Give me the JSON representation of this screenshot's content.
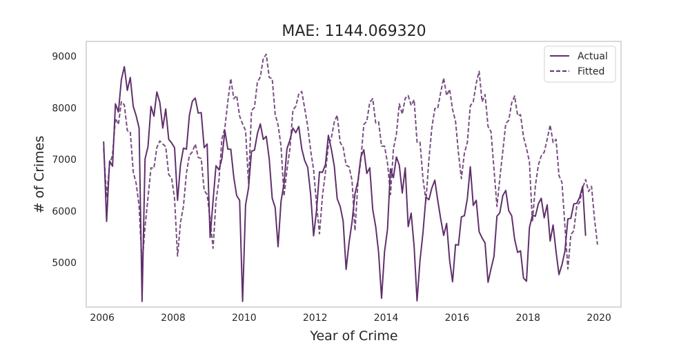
{
  "chart_data": {
    "type": "line",
    "title": "MAE: 1144.069320",
    "xlabel": "Year of Crime",
    "ylabel": "# of Crimes",
    "xlim": [
      2005.55,
      2020.62
    ],
    "ylim": [
      4140,
      9290
    ],
    "x_ticks": [
      2006,
      2008,
      2010,
      2012,
      2014,
      2016,
      2018,
      2020
    ],
    "y_ticks": [
      5000,
      6000,
      7000,
      8000,
      9000
    ],
    "x_start": 2006.04,
    "x_step": 0.08333,
    "grid": false,
    "legend": {
      "position": "top-right"
    },
    "colors": {
      "series": "#5f2f6b",
      "frame": "#cccccc"
    },
    "series": [
      {
        "name": "Actual",
        "style": "solid",
        "values": [
          7350,
          5800,
          6970,
          6870,
          8080,
          7920,
          8550,
          8800,
          8340,
          8590,
          8030,
          7850,
          7610,
          4250,
          7010,
          7250,
          8030,
          7840,
          8310,
          8110,
          7610,
          7980,
          7390,
          7320,
          7230,
          6210,
          6900,
          7220,
          7200,
          7860,
          8130,
          8190,
          7900,
          7910,
          7230,
          7300,
          5490,
          6200,
          6880,
          6800,
          7020,
          7560,
          7200,
          7200,
          6660,
          6300,
          6210,
          4250,
          6120,
          6450,
          7160,
          7180,
          7500,
          7690,
          7390,
          7450,
          7010,
          6250,
          6070,
          5310,
          6190,
          6530,
          7210,
          7380,
          7610,
          7520,
          7640,
          7210,
          6980,
          6850,
          6330,
          5520,
          6010,
          6760,
          6750,
          6900,
          7470,
          7200,
          6870,
          6240,
          6090,
          5810,
          4870,
          5390,
          5790,
          6340,
          6580,
          7050,
          7190,
          6730,
          6840,
          6030,
          5700,
          5200,
          4310,
          5210,
          5650,
          6820,
          6650,
          7050,
          6890,
          6350,
          6840,
          5700,
          5960,
          5310,
          4260,
          5040,
          5580,
          6270,
          6220,
          6450,
          6600,
          6210,
          5850,
          5530,
          5760,
          5050,
          4630,
          5350,
          5340,
          5890,
          5910,
          6240,
          6860,
          6110,
          6210,
          5600,
          5480,
          5380,
          4620,
          4880,
          5120,
          5900,
          5970,
          6300,
          6400,
          6010,
          5910,
          5450,
          5200,
          5230,
          4700,
          4640,
          5680,
          5920,
          5900,
          6140,
          6250,
          5870,
          6120,
          5420,
          5730,
          5210,
          4770,
          4960,
          5220,
          5850,
          5860,
          6140,
          6150,
          6270,
          6480,
          5520
        ]
      },
      {
        "name": "Fitted",
        "style": "dashed",
        "values": [
          7210,
          6260,
          6900,
          7090,
          7800,
          7680,
          8120,
          8060,
          7560,
          7540,
          6760,
          6540,
          6100,
          4950,
          5700,
          6260,
          6840,
          6830,
          7230,
          7360,
          7300,
          7250,
          6710,
          6640,
          6240,
          5130,
          5780,
          6100,
          6740,
          7080,
          7150,
          7300,
          7040,
          7020,
          6400,
          6320,
          5840,
          5280,
          6200,
          6590,
          7400,
          7610,
          8130,
          8570,
          8180,
          8240,
          7840,
          7690,
          7560,
          6540,
          7950,
          8010,
          8500,
          8600,
          8960,
          9040,
          8590,
          8570,
          7880,
          7670,
          7260,
          6290,
          6800,
          7210,
          7960,
          8030,
          8270,
          8320,
          7990,
          7650,
          7180,
          6800,
          6140,
          5560,
          6290,
          6750,
          7270,
          7420,
          7730,
          7860,
          7330,
          7240,
          6890,
          6860,
          6590,
          5620,
          6550,
          7000,
          7680,
          7740,
          8110,
          8180,
          7710,
          7730,
          7260,
          7260,
          6930,
          6320,
          7210,
          7490,
          8080,
          7880,
          8190,
          8240,
          8050,
          8160,
          7340,
          7340,
          6630,
          6200,
          7000,
          7620,
          7990,
          7990,
          8300,
          8580,
          8240,
          8360,
          7970,
          7740,
          7130,
          6630,
          7120,
          7330,
          8040,
          8120,
          8480,
          8710,
          8120,
          8260,
          7640,
          7540,
          6820,
          6090,
          6640,
          7160,
          7700,
          7760,
          8100,
          8230,
          7850,
          7870,
          7440,
          7220,
          6950,
          5790,
          6490,
          6890,
          7070,
          7140,
          7390,
          7670,
          7330,
          7390,
          6690,
          6560,
          5720,
          4880,
          5540,
          5620,
          6100,
          6170,
          6450,
          6610,
          6380,
          6480,
          5850,
          5350
        ]
      }
    ]
  }
}
